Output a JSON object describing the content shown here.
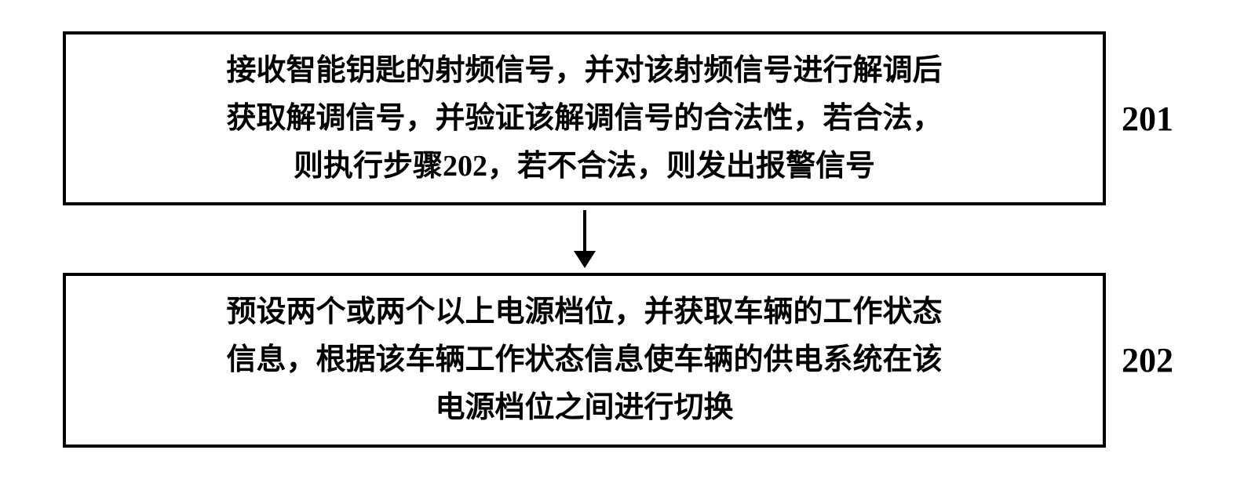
{
  "flowchart": {
    "type": "flowchart",
    "background_color": "#ffffff",
    "border_color": "#000000",
    "border_width": 4,
    "text_color": "#000000",
    "font_family": "KaiTi",
    "box_fontsize": 38,
    "label_fontsize": 44,
    "arrow_color": "#000000",
    "nodes": [
      {
        "id": "step201",
        "label": "201",
        "line1": "接收智能钥匙的射频信号，并对该射频信号进行解调后",
        "line2": "获取解调信号，并验证该解调信号的合法性，若合法，",
        "line3": "则执行步骤202，若不合法，则发出报警信号"
      },
      {
        "id": "step202",
        "label": "202",
        "line1": "预设两个或两个以上电源档位，并获取车辆的工作状态",
        "line2": "信息，根据该车辆工作状态信息使车辆的供电系统在该",
        "line3": "电源档位之间进行切换"
      }
    ],
    "edges": [
      {
        "from": "step201",
        "to": "step202"
      }
    ]
  }
}
